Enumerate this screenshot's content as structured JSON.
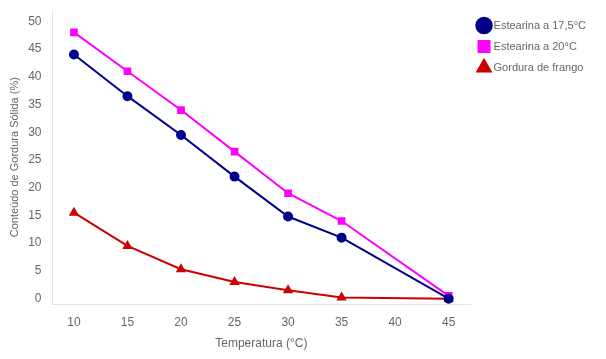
{
  "chart_data": {
    "type": "line",
    "x": [
      10,
      15,
      20,
      25,
      30,
      35,
      40,
      45
    ],
    "series": [
      {
        "name": "Estearina a 17,5°C",
        "color": "#00008B",
        "marker": "circle",
        "values": [
          44,
          36.5,
          29.5,
          22,
          14.8,
          11,
          null,
          0
        ]
      },
      {
        "name": "Estearina a 20°C",
        "color": "#FF00FF",
        "marker": "square",
        "values": [
          48,
          41,
          34,
          26.5,
          19,
          14,
          null,
          0.5
        ]
      },
      {
        "name": "Gordura de frango",
        "color": "#CC0000",
        "marker": "triangle",
        "values": [
          15.5,
          9.5,
          5.3,
          3,
          1.5,
          0.2,
          null,
          0
        ]
      }
    ],
    "x_label": "Temperatura (°C)",
    "y_label": "Conteúdo de Gordura Sólida (%)",
    "xlim": [
      8,
      47
    ],
    "ylim": [
      -1,
      52
    ],
    "xticks": [
      10,
      15,
      20,
      25,
      30,
      35,
      40,
      45
    ],
    "yticks": [
      0,
      5,
      10,
      15,
      20,
      25,
      30,
      35,
      40,
      45,
      50
    ],
    "grid": false,
    "legend": "right"
  }
}
